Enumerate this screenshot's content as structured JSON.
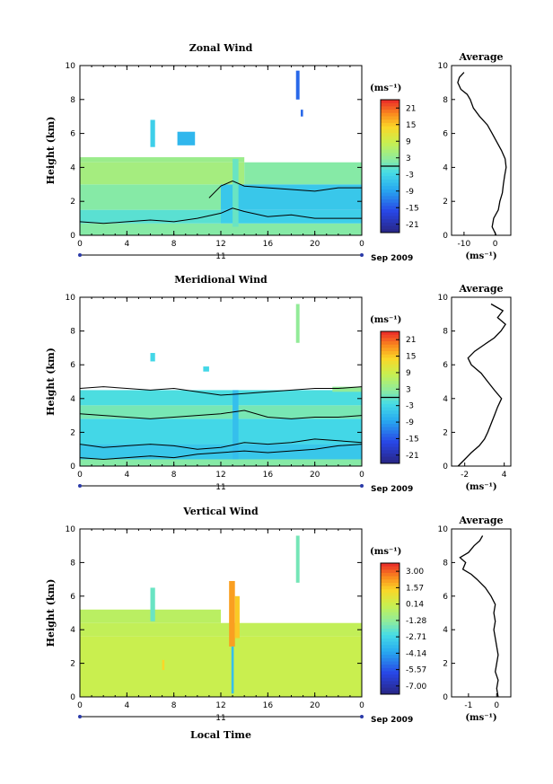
{
  "chart_data": [
    {
      "type": "heatmap",
      "title": "Zonal Wind",
      "ylabel": "Height (km)",
      "xlabel": "",
      "xticks": [
        "0",
        "4",
        "8",
        "12",
        "16",
        "20",
        "0"
      ],
      "yticks": [
        "0",
        "2",
        "4",
        "6",
        "8",
        "10"
      ],
      "xlim": [
        0,
        24
      ],
      "ylim": [
        0,
        10
      ],
      "day_label": "11",
      "date_label": "Sep 2009",
      "colorbar": {
        "unit": "(ms⁻¹)",
        "ticks": [
          "21",
          "15",
          "9",
          "3",
          "-3",
          "-9",
          "-15",
          "-21"
        ],
        "range": [
          -24,
          24
        ],
        "zero_line": 0
      },
      "layers": [
        {
          "from": 0.0,
          "to": 0.7,
          "t0": 0.0,
          "t1": 24.0,
          "value": 2
        },
        {
          "from": 0.7,
          "to": 1.5,
          "t0": 0.0,
          "t1": 12.0,
          "value": -1
        },
        {
          "from": 0.7,
          "to": 1.5,
          "t0": 12.0,
          "t1": 24.0,
          "value": -4
        },
        {
          "from": 1.5,
          "to": 3.0,
          "t0": 0.0,
          "t1": 12.0,
          "value": 2
        },
        {
          "from": 1.5,
          "to": 3.0,
          "t0": 12.0,
          "t1": 24.0,
          "value": -5
        },
        {
          "from": 3.0,
          "to": 4.3,
          "t0": 0.0,
          "t1": 14.0,
          "value": 5
        },
        {
          "from": 3.0,
          "to": 4.3,
          "t0": 14.0,
          "t1": 24.0,
          "value": 2
        },
        {
          "from": 4.3,
          "to": 4.6,
          "t0": 0.0,
          "t1": 14.0,
          "value": 4
        }
      ],
      "patches": [
        {
          "t0": 6.0,
          "t1": 6.4,
          "from": 5.2,
          "to": 6.8,
          "value": -4
        },
        {
          "t0": 8.3,
          "t1": 9.8,
          "from": 5.3,
          "to": 6.1,
          "value": -7
        },
        {
          "t0": 18.4,
          "t1": 18.7,
          "from": 8.0,
          "to": 9.7,
          "value": -14
        },
        {
          "t0": 18.8,
          "t1": 19.0,
          "from": 7.0,
          "to": 7.4,
          "value": -14
        },
        {
          "t0": 13.0,
          "t1": 13.5,
          "from": 0.5,
          "to": 4.5,
          "value": 0
        }
      ],
      "contours": [
        {
          "t": [
            0,
            2,
            4,
            6,
            8,
            10,
            12,
            13,
            14,
            16,
            18,
            20,
            22,
            24
          ],
          "h": [
            0.8,
            0.7,
            0.8,
            0.9,
            0.8,
            1.0,
            1.3,
            1.6,
            1.4,
            1.1,
            1.2,
            1.0,
            1.0,
            1.0
          ]
        },
        {
          "t": [
            11,
            12,
            13,
            14,
            16,
            18,
            20,
            22,
            24
          ],
          "h": [
            2.2,
            2.9,
            3.2,
            2.9,
            2.8,
            2.7,
            2.6,
            2.8,
            2.8
          ]
        }
      ],
      "average": {
        "xticks": [
          "-10",
          "0"
        ],
        "xlim": [
          -14,
          5
        ],
        "xlabel": "(ms⁻¹)",
        "title": "Average",
        "height": [
          0.0,
          0.5,
          1.0,
          1.5,
          2.0,
          2.5,
          3.0,
          3.5,
          4.0,
          4.5,
          5.0,
          5.5,
          6.0,
          6.5,
          7.0,
          7.5,
          8.0,
          8.3,
          8.6,
          9.0,
          9.3,
          9.6
        ],
        "values": [
          0.3,
          -1.0,
          -0.5,
          1.0,
          1.5,
          2.3,
          2.6,
          3.0,
          3.5,
          3.2,
          2.0,
          0.5,
          -1.0,
          -2.5,
          -5.0,
          -7.0,
          -8.0,
          -9.0,
          -11.0,
          -12.0,
          -11.5,
          -10.0
        ]
      }
    },
    {
      "type": "heatmap",
      "title": "Meridional Wind",
      "ylabel": "Height (km)",
      "xlabel": "",
      "xticks": [
        "0",
        "4",
        "8",
        "12",
        "16",
        "20",
        "0"
      ],
      "yticks": [
        "0",
        "2",
        "4",
        "6",
        "8",
        "10"
      ],
      "xlim": [
        0,
        24
      ],
      "ylim": [
        0,
        10
      ],
      "day_label": "11",
      "date_label": "Sep 2009",
      "colorbar": {
        "unit": "(ms⁻¹)",
        "ticks": [
          "21",
          "15",
          "9",
          "3",
          "-3",
          "-9",
          "-15",
          "-21"
        ],
        "range": [
          -24,
          24
        ],
        "zero_line": 0
      },
      "layers": [
        {
          "from": 0.0,
          "to": 0.4,
          "t0": 0.0,
          "t1": 24.0,
          "value": 2
        },
        {
          "from": 0.4,
          "to": 1.3,
          "t0": 0.0,
          "t1": 24.0,
          "value": -5
        },
        {
          "from": 1.3,
          "to": 2.8,
          "t0": 0.0,
          "t1": 24.0,
          "value": -3
        },
        {
          "from": 2.8,
          "to": 3.6,
          "t0": 0.0,
          "t1": 24.0,
          "value": 1
        },
        {
          "from": 3.6,
          "to": 4.5,
          "t0": 0.0,
          "t1": 24.0,
          "value": -2
        }
      ],
      "patches": [
        {
          "t0": 6.0,
          "t1": 6.4,
          "from": 6.2,
          "to": 6.7,
          "value": -3
        },
        {
          "t0": 10.5,
          "t1": 11.0,
          "from": 5.6,
          "to": 5.9,
          "value": -3
        },
        {
          "t0": 18.4,
          "t1": 18.7,
          "from": 7.3,
          "to": 9.6,
          "value": 3
        },
        {
          "t0": 13.0,
          "t1": 13.5,
          "from": 0.4,
          "to": 4.5,
          "value": -6
        },
        {
          "t0": 21.5,
          "t1": 24.0,
          "from": 4.4,
          "to": 4.7,
          "value": 3
        }
      ],
      "contours": [
        {
          "t": [
            0,
            2,
            4,
            6,
            8,
            10,
            12,
            14,
            16,
            18,
            20,
            22,
            24
          ],
          "h": [
            0.5,
            0.4,
            0.5,
            0.6,
            0.5,
            0.7,
            0.8,
            0.9,
            0.8,
            0.9,
            1.0,
            1.2,
            1.3
          ]
        },
        {
          "t": [
            0,
            2,
            4,
            6,
            8,
            10,
            12,
            14,
            16,
            18,
            20,
            22,
            24
          ],
          "h": [
            1.3,
            1.1,
            1.2,
            1.3,
            1.2,
            1.0,
            1.1,
            1.4,
            1.3,
            1.4,
            1.6,
            1.5,
            1.4
          ]
        },
        {
          "t": [
            0,
            2,
            4,
            6,
            8,
            10,
            12,
            14,
            16,
            18,
            20,
            22,
            24
          ],
          "h": [
            3.1,
            3.0,
            2.9,
            2.8,
            2.9,
            3.0,
            3.1,
            3.3,
            2.9,
            2.8,
            2.9,
            2.9,
            3.0
          ]
        },
        {
          "t": [
            0,
            2,
            4,
            6,
            8,
            10,
            12,
            14,
            16,
            18,
            20,
            22,
            24
          ],
          "h": [
            4.6,
            4.7,
            4.6,
            4.5,
            4.6,
            4.4,
            4.2,
            4.3,
            4.4,
            4.5,
            4.6,
            4.6,
            4.7
          ]
        }
      ],
      "average": {
        "xticks": [
          "-2",
          "4"
        ],
        "xlim": [
          -4,
          5
        ],
        "xlabel": "(ms⁻¹)",
        "title": "Average",
        "height": [
          0.0,
          0.4,
          0.8,
          1.2,
          1.6,
          2.0,
          2.5,
          3.0,
          3.5,
          4.0,
          4.5,
          5.0,
          5.5,
          6.0,
          6.4,
          6.8,
          7.2,
          7.6,
          8.0,
          8.4,
          8.8,
          9.2,
          9.6
        ],
        "values": [
          -3.0,
          -2.0,
          -1.0,
          0.2,
          1.0,
          1.5,
          2.0,
          2.5,
          3.0,
          3.6,
          2.5,
          1.5,
          0.5,
          -1.0,
          -1.5,
          -0.5,
          1.0,
          2.5,
          3.5,
          4.2,
          3.0,
          3.8,
          2.0
        ]
      }
    },
    {
      "type": "heatmap",
      "title": "Vertical Wind",
      "ylabel": "Height (km)",
      "xlabel": "Local Time",
      "xticks": [
        "0",
        "4",
        "8",
        "12",
        "16",
        "20",
        "0"
      ],
      "yticks": [
        "0",
        "2",
        "4",
        "6",
        "8",
        "10"
      ],
      "xlim": [
        0,
        24
      ],
      "ylim": [
        0,
        10
      ],
      "day_label": "11",
      "date_label": "Sep 2009",
      "colorbar": {
        "unit": "(ms⁻¹)",
        "ticks": [
          "3.00",
          "1.57",
          "0.14",
          "-1.28",
          "-2.71",
          "-4.14",
          "-5.57",
          "-7.00"
        ],
        "range": [
          -8,
          4
        ],
        "zero_line": null
      },
      "layers": [
        {
          "from": 0.0,
          "to": 3.6,
          "t0": 0.0,
          "t1": 24.0,
          "value": 0.2
        },
        {
          "from": 3.6,
          "to": 4.4,
          "t0": 0.0,
          "t1": 24.0,
          "value": 0.0
        },
        {
          "from": 4.4,
          "to": 5.2,
          "t0": 0.0,
          "t1": 12.0,
          "value": -0.2
        }
      ],
      "patches": [
        {
          "t0": 12.7,
          "t1": 13.2,
          "from": 3.0,
          "to": 6.9,
          "value": 2.5
        },
        {
          "t0": 13.2,
          "t1": 13.6,
          "from": 3.5,
          "to": 6.0,
          "value": 1.8
        },
        {
          "t0": 12.9,
          "t1": 13.1,
          "from": 0.2,
          "to": 3.0,
          "value": -3.5
        },
        {
          "t0": 6.0,
          "t1": 6.4,
          "from": 4.5,
          "to": 6.5,
          "value": -2.0
        },
        {
          "t0": 18.4,
          "t1": 18.7,
          "from": 6.8,
          "to": 9.6,
          "value": -1.8
        },
        {
          "t0": 7.0,
          "t1": 7.2,
          "from": 1.6,
          "to": 2.2,
          "value": 1.6
        }
      ],
      "contours": [],
      "average": {
        "xticks": [
          "-1",
          "0"
        ],
        "xlim": [
          -1.6,
          0.5
        ],
        "xlabel": "(ms⁻¹)",
        "title": "Average",
        "height": [
          0.0,
          0.5,
          1.0,
          1.5,
          2.0,
          2.5,
          3.0,
          3.5,
          4.0,
          4.5,
          5.0,
          5.5,
          6.0,
          6.5,
          7.0,
          7.3,
          7.6,
          8.0,
          8.3,
          8.6,
          9.0,
          9.3,
          9.6
        ],
        "values": [
          0.05,
          0.0,
          0.05,
          -0.05,
          0.0,
          0.05,
          0.0,
          -0.05,
          -0.1,
          -0.05,
          -0.1,
          -0.05,
          -0.2,
          -0.4,
          -0.7,
          -0.9,
          -1.2,
          -1.1,
          -1.3,
          -1.0,
          -0.8,
          -0.6,
          -0.5
        ]
      }
    }
  ]
}
